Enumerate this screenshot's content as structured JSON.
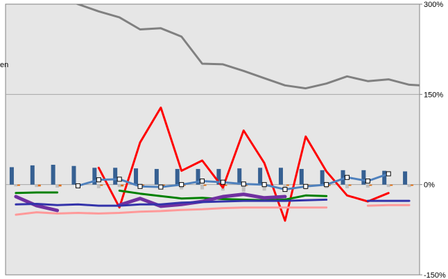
{
  "chart_data": {
    "type": "line",
    "plot_background": "#e6e6e6",
    "grid": "horizontal-at-ticks",
    "y_axis_right": {
      "ticks": [
        300,
        150,
        0,
        -150
      ],
      "tick_labels": [
        "300%",
        "150%",
        "0%",
        "-150%"
      ],
      "ylim": [
        -150,
        300
      ]
    },
    "x": [
      1,
      2,
      3,
      4,
      5,
      6,
      7,
      8,
      9,
      10,
      11,
      12,
      13,
      14,
      15,
      16,
      17,
      18,
      19,
      20,
      21,
      22,
      23,
      24,
      25,
      26,
      27,
      28,
      29,
      30,
      31,
      32,
      33,
      34,
      35,
      36,
      37,
      38,
      39,
      40
    ],
    "bar_series": [
      {
        "color": "#366092",
        "values": [
          29,
          32,
          33,
          31,
          28,
          28,
          27,
          26,
          26,
          26,
          26,
          27,
          28,
          28,
          26,
          24,
          24,
          24,
          23,
          22,
          22,
          22,
          22,
          23,
          27,
          27,
          25,
          24,
          23,
          24
        ]
      },
      {
        "color": "#c0c0c0",
        "values": [
          -3,
          -4,
          -5,
          -4,
          -6,
          -4,
          -6,
          -5,
          -8,
          -8,
          -10,
          -12,
          -10,
          -8,
          -8,
          -6,
          -6,
          -5,
          -4,
          -4,
          -4,
          -5,
          -5,
          -4,
          -2,
          -2,
          -2,
          -2,
          -2,
          -2
        ]
      },
      {
        "color": "#e26b0a",
        "values": [
          -2,
          -3,
          -3,
          -2,
          -2,
          -3,
          -3,
          -2,
          -2,
          -2,
          -2,
          -2,
          -2,
          -2,
          -2,
          -2,
          -2,
          -2,
          -2,
          -2,
          -2,
          -2,
          -2,
          -2,
          -2,
          -2,
          -2,
          -2,
          -2,
          -2
        ]
      }
    ],
    "line_series": [
      {
        "color": "#808080",
        "width": 3,
        "points": [
          [
            3,
            315
          ],
          [
            4,
            300
          ],
          [
            5,
            288
          ],
          [
            6,
            278
          ],
          [
            7,
            258
          ],
          [
            8,
            260
          ],
          [
            9,
            246
          ],
          [
            10,
            201
          ],
          [
            11,
            200
          ],
          [
            12,
            189
          ],
          [
            13,
            177
          ],
          [
            14,
            165
          ],
          [
            15,
            160
          ],
          [
            16,
            168
          ],
          [
            17,
            180
          ],
          [
            18,
            172
          ],
          [
            19,
            175
          ],
          [
            20,
            166
          ],
          [
            21,
            164
          ],
          [
            22,
            164
          ]
        ]
      },
      {
        "color": "#ff0000",
        "width": 3,
        "points": [
          [
            5,
            28
          ],
          [
            6,
            -38
          ],
          [
            7,
            70
          ],
          [
            8,
            128
          ],
          [
            9,
            23
          ],
          [
            10,
            40
          ],
          [
            11,
            -5
          ],
          [
            12,
            90
          ],
          [
            13,
            36
          ],
          [
            14,
            -60
          ],
          [
            15,
            80
          ],
          [
            16,
            22
          ],
          [
            17,
            -18
          ],
          [
            18,
            -28
          ],
          [
            19,
            -14
          ]
        ]
      },
      {
        "color": "#4f81bd",
        "width": 3,
        "marker": "square",
        "points": [
          [
            4,
            -2
          ],
          [
            5,
            8
          ],
          [
            6,
            9
          ],
          [
            7,
            -3
          ],
          [
            8,
            -4
          ],
          [
            9,
            0
          ],
          [
            10,
            6
          ],
          [
            11,
            4
          ],
          [
            12,
            1
          ],
          [
            13,
            0
          ],
          [
            14,
            -8
          ],
          [
            15,
            -3
          ],
          [
            16,
            0
          ],
          [
            17,
            12
          ],
          [
            18,
            6
          ],
          [
            19,
            18
          ]
        ]
      },
      {
        "color": "#008000",
        "width": 3,
        "points": [
          [
            1,
            -14
          ],
          [
            2,
            -13
          ],
          [
            3,
            -13
          ],
          [
            null,
            null
          ],
          [
            6,
            -10
          ],
          [
            7,
            -15
          ],
          [
            8,
            -19
          ],
          [
            9,
            -23
          ],
          [
            10,
            -22
          ],
          [
            11,
            -24
          ],
          [
            12,
            -25
          ],
          [
            13,
            -26
          ],
          [
            14,
            -25
          ],
          [
            15,
            -18
          ],
          [
            16,
            -19
          ]
        ]
      },
      {
        "color": "#7030a0",
        "width": 5,
        "points": [
          [
            1,
            -20
          ],
          [
            2,
            -35
          ],
          [
            3,
            -43
          ],
          [
            null,
            null
          ],
          [
            6,
            -34
          ],
          [
            7,
            -23
          ],
          [
            8,
            -36
          ],
          [
            9,
            -33
          ],
          [
            10,
            -28
          ],
          [
            11,
            -20
          ],
          [
            12,
            -16
          ],
          [
            13,
            -22
          ],
          [
            14,
            -20
          ]
        ]
      },
      {
        "color": "#3333aa",
        "width": 3,
        "points": [
          [
            1,
            -33
          ],
          [
            2,
            -32
          ],
          [
            3,
            -34
          ],
          [
            4,
            -33
          ],
          [
            5,
            -35
          ],
          [
            6,
            -35
          ],
          [
            7,
            -33
          ],
          [
            8,
            -33
          ],
          [
            9,
            -30
          ],
          [
            10,
            -29
          ],
          [
            11,
            -28
          ],
          [
            12,
            -27
          ],
          [
            13,
            -27
          ],
          [
            14,
            -27
          ],
          [
            15,
            -26
          ],
          [
            16,
            -25
          ],
          [
            null,
            null
          ],
          [
            18,
            -27
          ],
          [
            19,
            -27
          ],
          [
            20,
            -27
          ]
        ]
      },
      {
        "color": "#ff9999",
        "width": 3,
        "points": [
          [
            1,
            -50
          ],
          [
            2,
            -46
          ],
          [
            3,
            -48
          ],
          [
            4,
            -47
          ],
          [
            5,
            -48
          ],
          [
            6,
            -47
          ],
          [
            7,
            -45
          ],
          [
            8,
            -44
          ],
          [
            9,
            -42
          ],
          [
            10,
            -41
          ],
          [
            11,
            -39
          ],
          [
            12,
            -38
          ],
          [
            13,
            -38
          ],
          [
            14,
            -38
          ],
          [
            15,
            -38
          ],
          [
            16,
            -38
          ],
          [
            null,
            null
          ],
          [
            18,
            -35
          ],
          [
            19,
            -34
          ],
          [
            20,
            -34
          ]
        ]
      }
    ],
    "partial_legend_text": "en"
  }
}
